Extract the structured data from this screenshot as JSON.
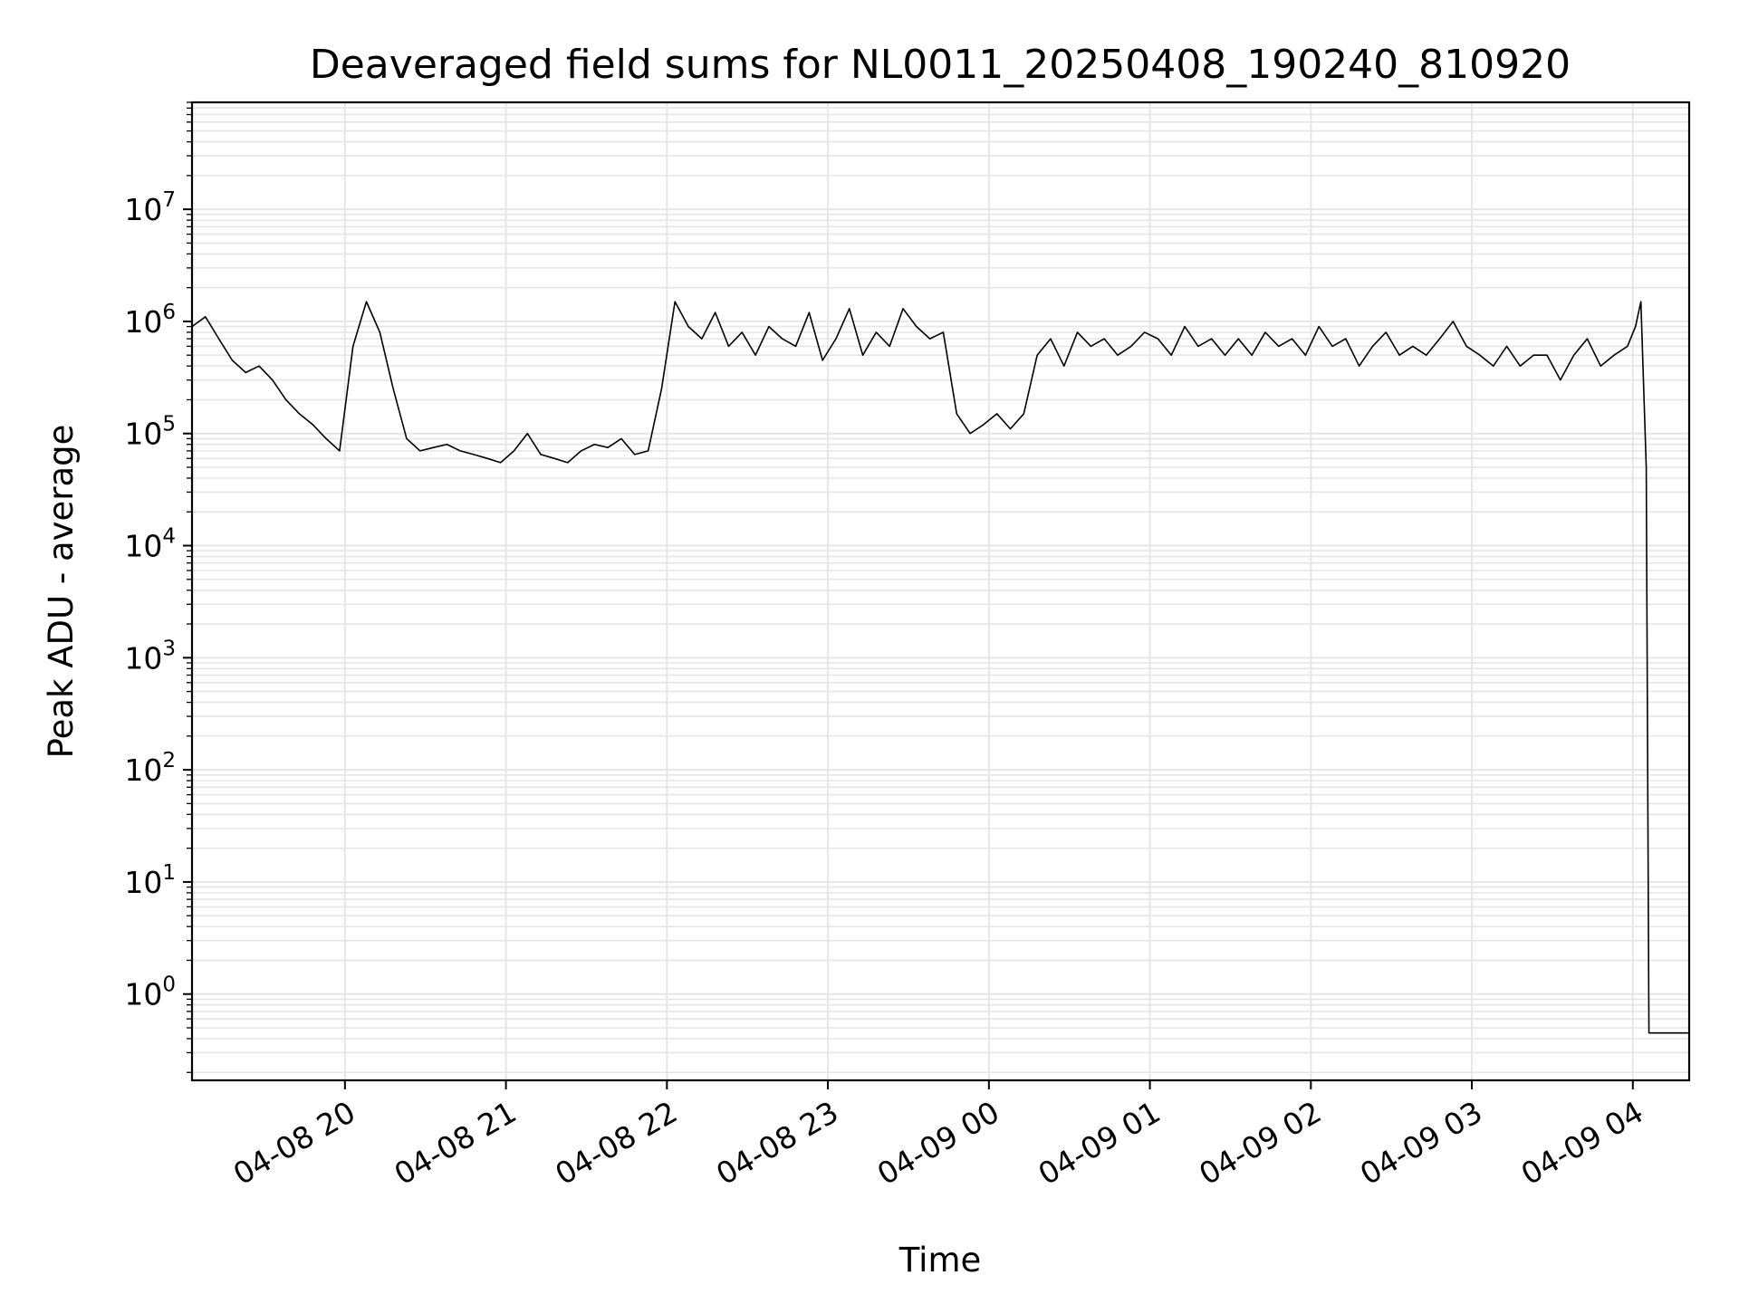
{
  "chart_data": {
    "type": "line",
    "title": "Deaveraged field sums for NL0011_20250408_190240_810920",
    "xlabel": "Time",
    "ylabel": "Peak ADU - average",
    "yscale": "log",
    "grid": true,
    "line_color": "#000000",
    "grid_color": "#e6e6e6",
    "xlim": [
      "2025-04-08 19:03",
      "2025-04-09 04:21"
    ],
    "ylim": [
      0.17,
      90000000
    ],
    "x_ticks": [
      {
        "value": "2025-04-08 20:00",
        "label": "04-08 20"
      },
      {
        "value": "2025-04-08 21:00",
        "label": "04-08 21"
      },
      {
        "value": "2025-04-08 22:00",
        "label": "04-08 22"
      },
      {
        "value": "2025-04-08 23:00",
        "label": "04-08 23"
      },
      {
        "value": "2025-04-09 00:00",
        "label": "04-09 00"
      },
      {
        "value": "2025-04-09 01:00",
        "label": "04-09 01"
      },
      {
        "value": "2025-04-09 02:00",
        "label": "04-09 02"
      },
      {
        "value": "2025-04-09 03:00",
        "label": "04-09 03"
      },
      {
        "value": "2025-04-09 04:00",
        "label": "04-09 04"
      }
    ],
    "y_ticks": [
      {
        "value": 1,
        "base": "10",
        "exp": "0"
      },
      {
        "value": 10,
        "base": "10",
        "exp": "1"
      },
      {
        "value": 100,
        "base": "10",
        "exp": "2"
      },
      {
        "value": 1000,
        "base": "10",
        "exp": "3"
      },
      {
        "value": 10000,
        "base": "10",
        "exp": "4"
      },
      {
        "value": 100000,
        "base": "10",
        "exp": "5"
      },
      {
        "value": 1000000,
        "base": "10",
        "exp": "6"
      },
      {
        "value": 10000000,
        "base": "10",
        "exp": "7"
      }
    ],
    "series": [
      {
        "x": [
          "2025-04-08 19:03",
          "2025-04-08 19:08",
          "2025-04-08 19:13",
          "2025-04-08 19:18",
          "2025-04-08 19:23",
          "2025-04-08 19:28",
          "2025-04-08 19:33",
          "2025-04-08 19:38",
          "2025-04-08 19:43",
          "2025-04-08 19:48",
          "2025-04-08 19:53",
          "2025-04-08 19:58",
          "2025-04-08 20:03",
          "2025-04-08 20:08",
          "2025-04-08 20:13",
          "2025-04-08 20:18",
          "2025-04-08 20:23",
          "2025-04-08 20:28",
          "2025-04-08 20:33",
          "2025-04-08 20:38",
          "2025-04-08 20:43",
          "2025-04-08 20:48",
          "2025-04-08 20:53",
          "2025-04-08 20:58",
          "2025-04-08 21:03",
          "2025-04-08 21:08",
          "2025-04-08 21:13",
          "2025-04-08 21:18",
          "2025-04-08 21:23",
          "2025-04-08 21:28",
          "2025-04-08 21:33",
          "2025-04-08 21:38",
          "2025-04-08 21:43",
          "2025-04-08 21:48",
          "2025-04-08 21:53",
          "2025-04-08 21:58",
          "2025-04-08 22:03",
          "2025-04-08 22:08",
          "2025-04-08 22:13",
          "2025-04-08 22:18",
          "2025-04-08 22:23",
          "2025-04-08 22:28",
          "2025-04-08 22:33",
          "2025-04-08 22:38",
          "2025-04-08 22:43",
          "2025-04-08 22:48",
          "2025-04-08 22:53",
          "2025-04-08 22:58",
          "2025-04-08 23:03",
          "2025-04-08 23:08",
          "2025-04-08 23:13",
          "2025-04-08 23:18",
          "2025-04-08 23:23",
          "2025-04-08 23:28",
          "2025-04-08 23:33",
          "2025-04-08 23:38",
          "2025-04-08 23:43",
          "2025-04-08 23:48",
          "2025-04-08 23:53",
          "2025-04-08 23:58",
          "2025-04-09 00:03",
          "2025-04-09 00:08",
          "2025-04-09 00:13",
          "2025-04-09 00:18",
          "2025-04-09 00:23",
          "2025-04-09 00:28",
          "2025-04-09 00:33",
          "2025-04-09 00:38",
          "2025-04-09 00:43",
          "2025-04-09 00:48",
          "2025-04-09 00:53",
          "2025-04-09 00:58",
          "2025-04-09 01:03",
          "2025-04-09 01:08",
          "2025-04-09 01:13",
          "2025-04-09 01:18",
          "2025-04-09 01:23",
          "2025-04-09 01:28",
          "2025-04-09 01:33",
          "2025-04-09 01:38",
          "2025-04-09 01:43",
          "2025-04-09 01:48",
          "2025-04-09 01:53",
          "2025-04-09 01:58",
          "2025-04-09 02:03",
          "2025-04-09 02:08",
          "2025-04-09 02:13",
          "2025-04-09 02:18",
          "2025-04-09 02:23",
          "2025-04-09 02:28",
          "2025-04-09 02:33",
          "2025-04-09 02:38",
          "2025-04-09 02:43",
          "2025-04-09 02:48",
          "2025-04-09 02:53",
          "2025-04-09 02:58",
          "2025-04-09 03:03",
          "2025-04-09 03:08",
          "2025-04-09 03:13",
          "2025-04-09 03:18",
          "2025-04-09 03:23",
          "2025-04-09 03:28",
          "2025-04-09 03:33",
          "2025-04-09 03:38",
          "2025-04-09 03:43",
          "2025-04-09 03:48",
          "2025-04-09 03:53",
          "2025-04-09 03:58",
          "2025-04-09 04:01",
          "2025-04-09 04:03",
          "2025-04-09 04:05",
          "2025-04-09 04:06",
          "2025-04-09 04:08",
          "2025-04-09 04:13",
          "2025-04-09 04:18",
          "2025-04-09 04:21"
        ],
        "y": [
          900000,
          1100000,
          700000,
          450000,
          350000,
          400000,
          300000,
          200000,
          150000,
          120000,
          90000,
          70000,
          600000,
          1500000,
          800000,
          250000,
          90000,
          70000,
          75000,
          80000,
          70000,
          65000,
          60000,
          55000,
          70000,
          100000,
          65000,
          60000,
          55000,
          70000,
          80000,
          75000,
          90000,
          65000,
          70000,
          250000,
          1500000,
          900000,
          700000,
          1200000,
          600000,
          800000,
          500000,
          900000,
          700000,
          600000,
          1200000,
          450000,
          700000,
          1300000,
          500000,
          800000,
          600000,
          1300000,
          900000,
          700000,
          800000,
          150000,
          100000,
          120000,
          150000,
          110000,
          150000,
          500000,
          700000,
          400000,
          800000,
          600000,
          700000,
          500000,
          600000,
          800000,
          700000,
          500000,
          900000,
          600000,
          700000,
          500000,
          700000,
          500000,
          800000,
          600000,
          700000,
          500000,
          900000,
          600000,
          700000,
          400000,
          600000,
          800000,
          500000,
          600000,
          500000,
          700000,
          1000000,
          600000,
          500000,
          400000,
          600000,
          400000,
          500000,
          500000,
          300000,
          500000,
          700000,
          400000,
          500000,
          600000,
          900000,
          1500000,
          50000,
          0.45,
          0.45,
          0.45,
          0.45,
          0.45
        ]
      }
    ]
  }
}
